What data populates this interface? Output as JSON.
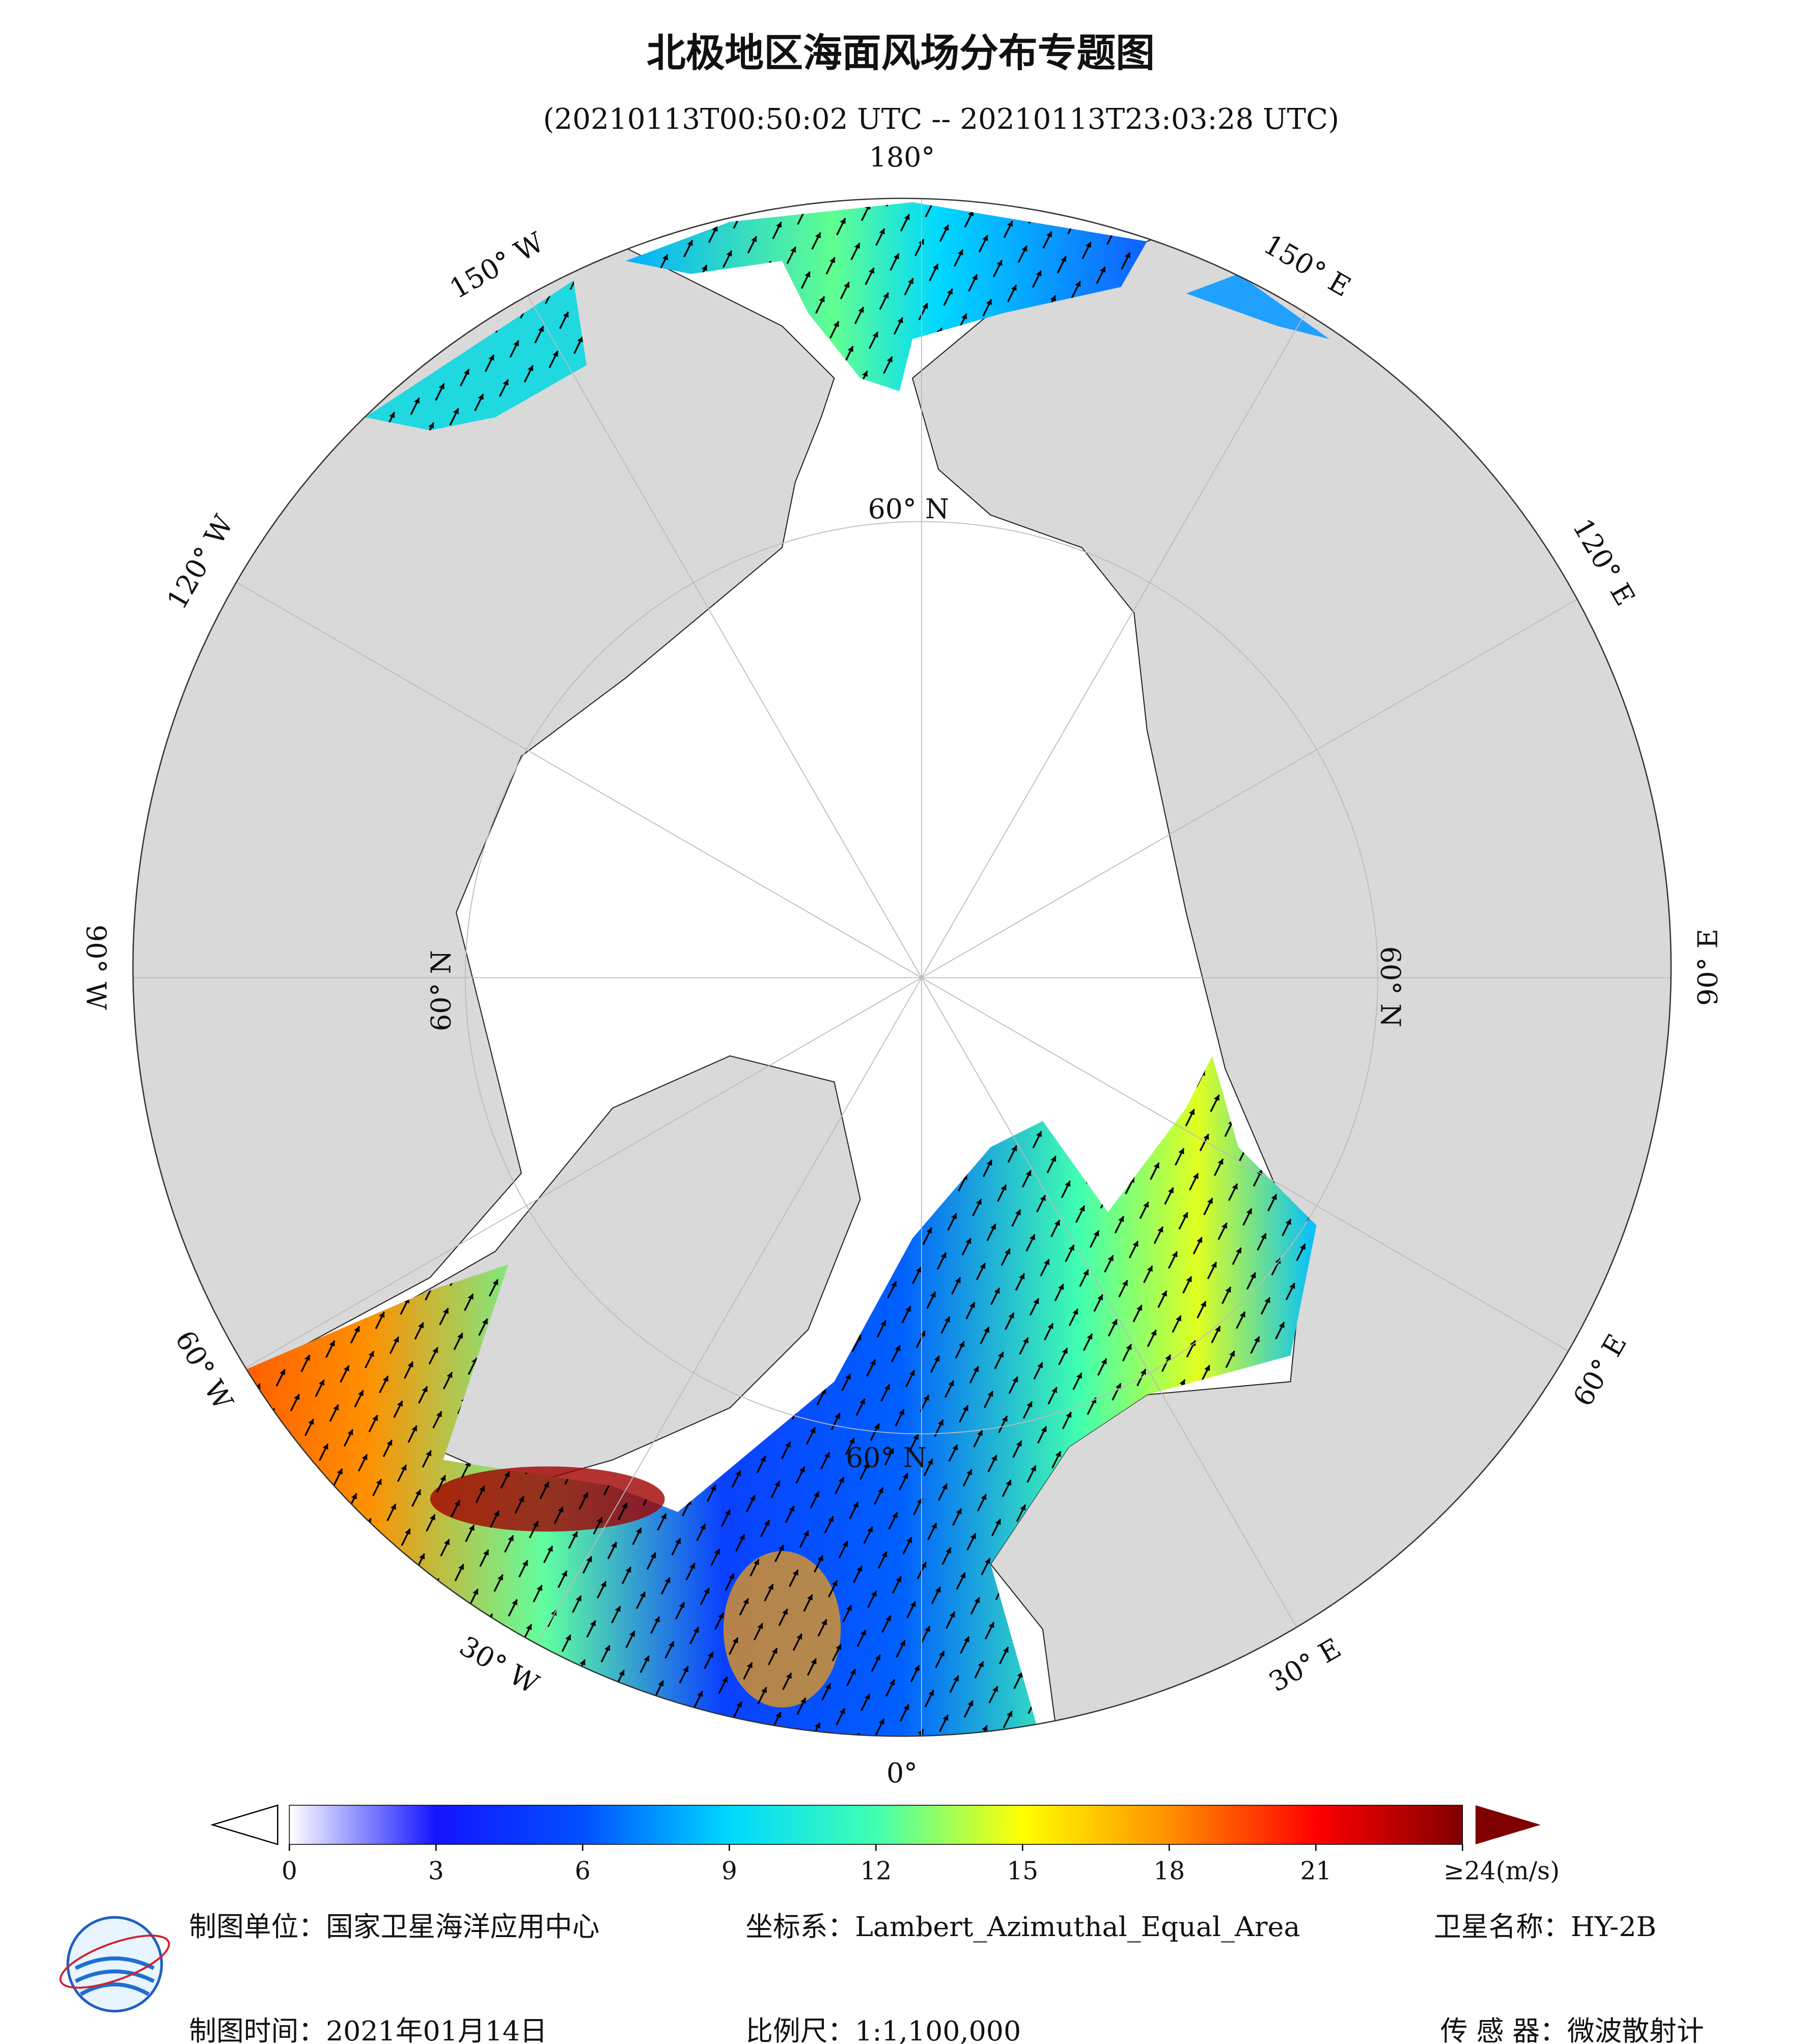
{
  "title": "北极地区海面风场分布专题图",
  "subtitle": "(20210113T00:50:02 UTC -- 20210113T23:03:28 UTC)",
  "lon_labels": [
    "0°",
    "30° E",
    "60° E",
    "90° E",
    "120° E",
    "150° E",
    "180°",
    "150° W",
    "120° W",
    "90° W",
    "60° W",
    "30° W"
  ],
  "lat_labels": [
    "60° N",
    "60° N",
    "60° N",
    "60° N"
  ],
  "colorbar": {
    "lim": [
      0,
      24
    ],
    "ticks": [
      0,
      3,
      6,
      9,
      12,
      15,
      18,
      21,
      {
        "value": 24,
        "label": "≥24(m/s)"
      }
    ],
    "colors": [
      "#ffffff",
      "#1414ff",
      "#0050ff",
      "#00d8ff",
      "#40ffb0",
      "#ffff00",
      "#ff9000",
      "#ff0000",
      "#800000"
    ]
  },
  "footer": {
    "unit": "制图单位：国家卫星海洋应用中心",
    "crs": "坐标系：Lambert_Azimuthal_Equal_Area",
    "satellite": "卫星名称：HY-2B",
    "date": "制图时间：2021年01月14日",
    "scale": "比例尺：1:1,100,000",
    "sensor": "传 感 器：微波散射计"
  }
}
